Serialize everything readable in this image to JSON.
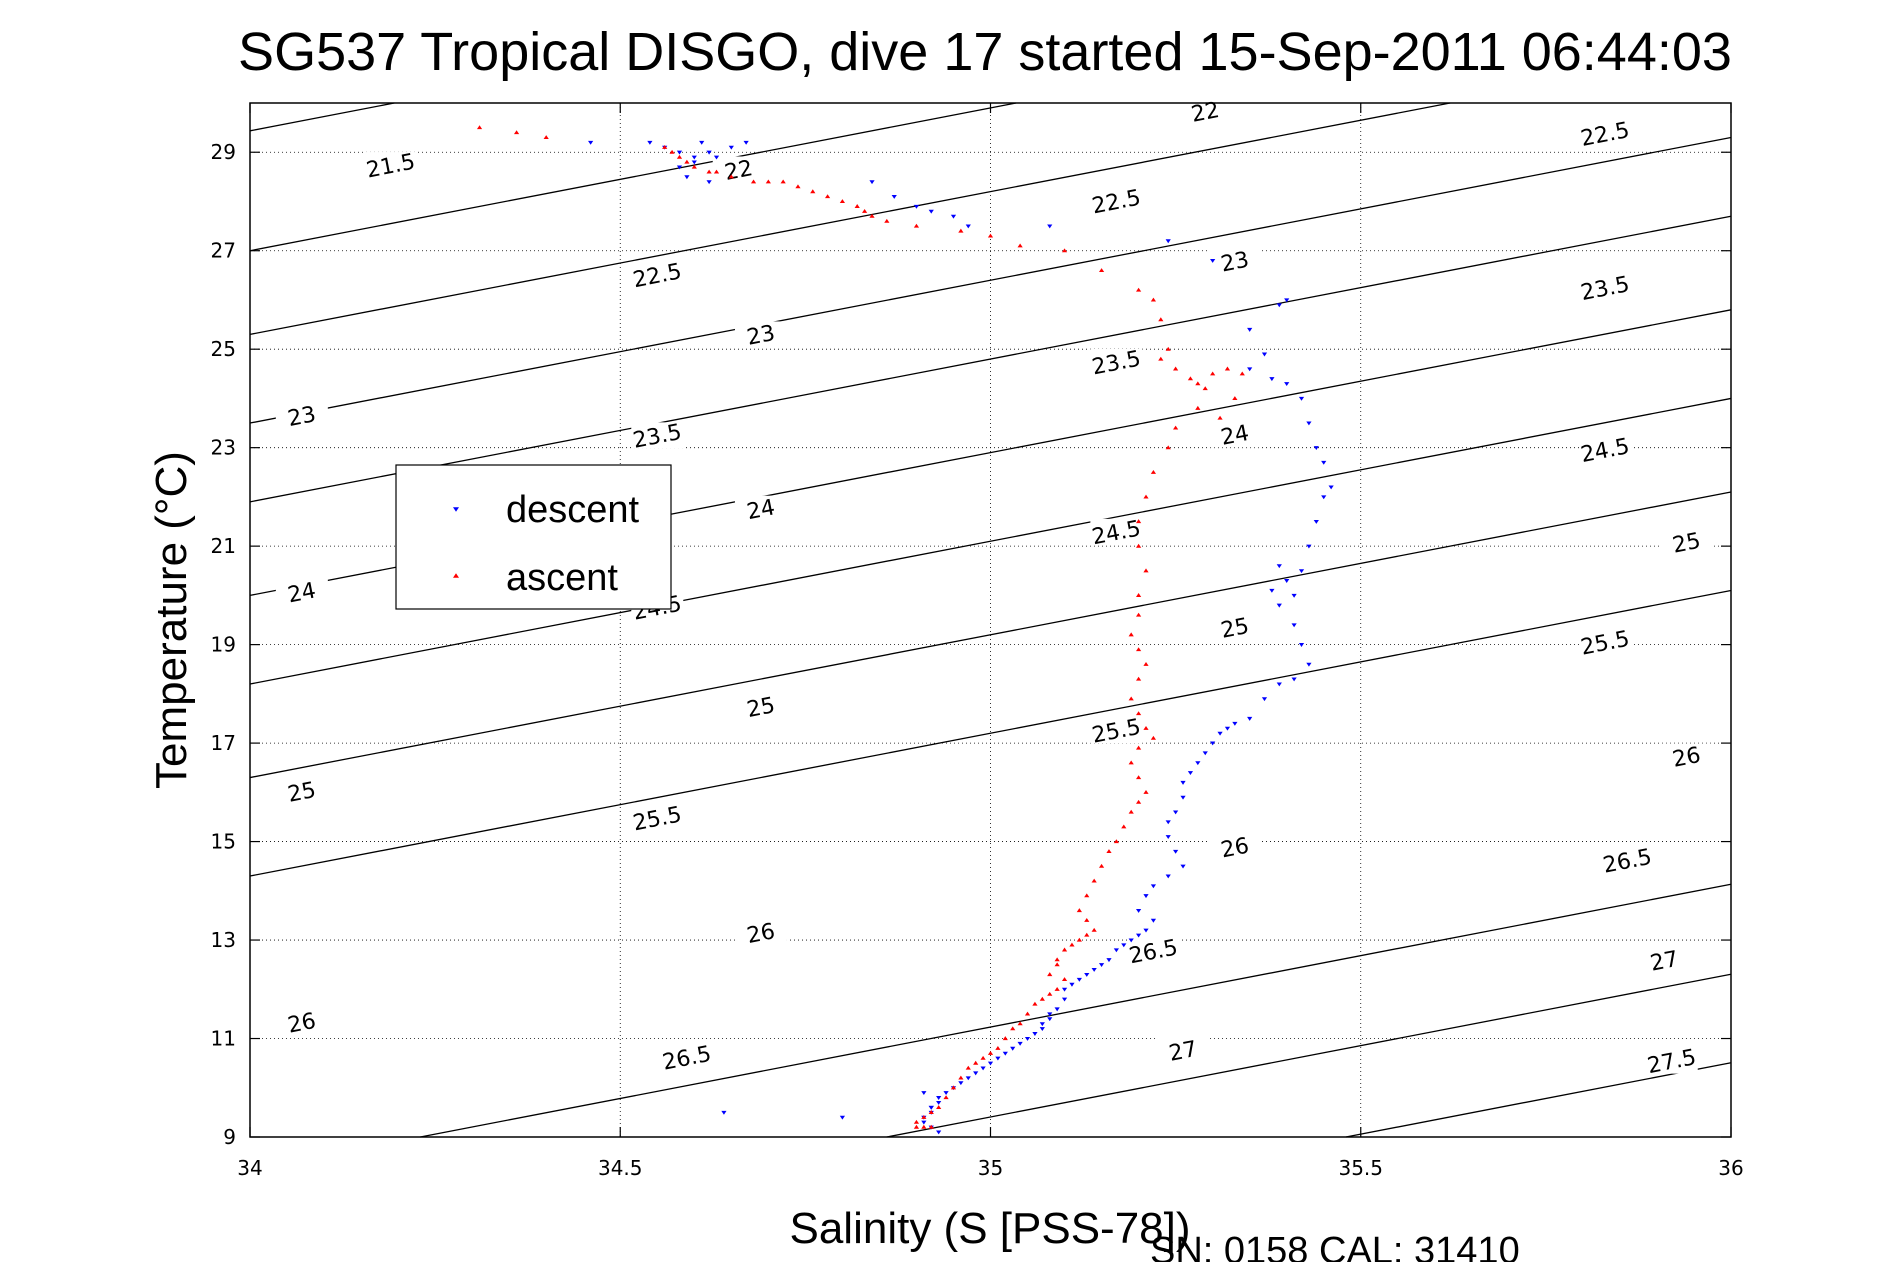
{
  "chart_data": {
    "type": "scatter",
    "title": "SG537 Tropical DISGO, dive 17 started 15-Sep-2011 06:44:03",
    "xlabel": "Salinity (S [PSS-78])",
    "ylabel": "Temperature (°C)",
    "xlim": [
      34,
      36
    ],
    "ylim": [
      9,
      30
    ],
    "xticks": [
      "34",
      "34.5",
      "35",
      "35.5",
      "36"
    ],
    "yticks": [
      "9",
      "11",
      "13",
      "15",
      "17",
      "19",
      "21",
      "23",
      "25",
      "27",
      "29"
    ],
    "grid": true,
    "legend_position": "left",
    "footer": "SN: 0158  CAL: 31410",
    "density_contours": {
      "levels": [
        "21.5",
        "22",
        "22.5",
        "23",
        "23.5",
        "24",
        "24.5",
        "25",
        "25.5",
        "26",
        "26.5",
        "27",
        "27.5"
      ],
      "lines": [
        {
          "level": 21.5,
          "S0": 33.85,
          "T0": 29.0
        },
        {
          "level": 22.0,
          "S0": 33.2,
          "T0": 28.7
        },
        {
          "level": 22.5,
          "S0": 34.0,
          "T0": 27.0
        },
        {
          "level": 23.0,
          "S0": 34.0,
          "T0": 25.3
        },
        {
          "level": 23.5,
          "S0": 34.0,
          "T0": 23.5
        },
        {
          "level": 24.0,
          "S0": 34.0,
          "T0": 21.9
        },
        {
          "level": 24.5,
          "S0": 34.0,
          "T0": 20.0
        },
        {
          "level": 25.0,
          "S0": 34.0,
          "T0": 18.2
        },
        {
          "level": 25.5,
          "S0": 34.0,
          "T0": 16.3
        },
        {
          "level": 26.0,
          "S0": 34.0,
          "T0": 14.3
        },
        {
          "level": 26.5,
          "S0": 34.23,
          "T0": 9.0
        },
        {
          "level": 27.0,
          "S0": 34.86,
          "T0": 9.0
        },
        {
          "level": 27.5,
          "S0": 35.48,
          "T0": 9.0
        }
      ],
      "labels": [
        {
          "text": "21.5",
          "S": 34.19,
          "T": 28.72
        },
        {
          "text": "22",
          "S": 34.66,
          "T": 28.63
        },
        {
          "text": "22",
          "S": 35.29,
          "T": 29.81
        },
        {
          "text": "22.5",
          "S": 34.55,
          "T": 26.49
        },
        {
          "text": "22.5",
          "S": 35.17,
          "T": 27.99
        },
        {
          "text": "22.5",
          "S": 35.83,
          "T": 29.36
        },
        {
          "text": "23",
          "S": 34.07,
          "T": 23.63
        },
        {
          "text": "23",
          "S": 34.69,
          "T": 25.28
        },
        {
          "text": "23",
          "S": 35.33,
          "T": 26.77
        },
        {
          "text": "23.5",
          "S": 34.55,
          "T": 23.23
        },
        {
          "text": "23.5",
          "S": 35.17,
          "T": 24.72
        },
        {
          "text": "23.5",
          "S": 35.83,
          "T": 26.23
        },
        {
          "text": "24",
          "S": 34.07,
          "T": 20.05
        },
        {
          "text": "24",
          "S": 34.69,
          "T": 21.74
        },
        {
          "text": "24",
          "S": 35.33,
          "T": 23.25
        },
        {
          "text": "24.5",
          "S": 34.55,
          "T": 19.74
        },
        {
          "text": "24.5",
          "S": 35.17,
          "T": 21.27
        },
        {
          "text": "24.5",
          "S": 35.83,
          "T": 22.94
        },
        {
          "text": "25",
          "S": 34.07,
          "T": 16.0
        },
        {
          "text": "25",
          "S": 34.69,
          "T": 17.72
        },
        {
          "text": "25",
          "S": 35.33,
          "T": 19.33
        },
        {
          "text": "25",
          "S": 35.94,
          "T": 21.06
        },
        {
          "text": "25.5",
          "S": 34.55,
          "T": 15.46
        },
        {
          "text": "25.5",
          "S": 35.17,
          "T": 17.24
        },
        {
          "text": "25.5",
          "S": 35.83,
          "T": 19.03
        },
        {
          "text": "26",
          "S": 34.07,
          "T": 11.31
        },
        {
          "text": "26",
          "S": 34.69,
          "T": 13.13
        },
        {
          "text": "26",
          "S": 35.33,
          "T": 14.87
        },
        {
          "text": "26",
          "S": 35.94,
          "T": 16.71
        },
        {
          "text": "26.5",
          "S": 34.59,
          "T": 10.6
        },
        {
          "text": "26.5",
          "S": 35.22,
          "T": 12.76
        },
        {
          "text": "26.5",
          "S": 35.86,
          "T": 14.6
        },
        {
          "text": "27",
          "S": 35.26,
          "T": 10.74
        },
        {
          "text": "27",
          "S": 35.91,
          "T": 12.57
        },
        {
          "text": "27.5",
          "S": 35.92,
          "T": 10.53
        }
      ]
    },
    "series": [
      {
        "name": "descent",
        "color": "#0000ff",
        "marker": "triangle-down",
        "x": [
          34.46,
          34.54,
          34.56,
          34.58,
          34.6,
          34.61,
          34.62,
          34.6,
          34.58,
          34.59,
          34.62,
          34.63,
          34.65,
          34.67,
          34.84,
          34.87,
          34.9,
          34.92,
          34.95,
          34.97,
          35.08,
          35.24,
          35.3,
          35.35,
          35.39,
          35.4,
          35.37,
          35.35,
          35.38,
          35.4,
          35.42,
          35.43,
          35.44,
          35.45,
          35.46,
          35.45,
          35.44,
          35.43,
          35.42,
          35.41,
          35.4,
          35.39,
          35.38,
          35.39,
          35.41,
          35.42,
          35.43,
          35.41,
          35.39,
          35.37,
          35.35,
          35.33,
          35.32,
          35.31,
          35.3,
          35.29,
          35.28,
          35.27,
          35.26,
          35.26,
          35.25,
          35.24,
          35.24,
          35.25,
          35.26,
          35.24,
          35.22,
          35.21,
          35.2,
          35.22,
          35.21,
          35.2,
          35.19,
          35.18,
          35.17,
          35.16,
          35.15,
          35.14,
          35.13,
          35.12,
          35.11,
          35.1,
          35.1,
          35.09,
          35.08,
          35.08,
          35.07,
          35.07,
          35.06,
          35.05,
          35.04,
          35.03,
          35.02,
          35.01,
          35.0,
          34.99,
          34.98,
          34.97,
          34.96,
          34.95,
          34.94,
          34.93,
          34.93,
          34.92,
          34.92,
          34.91,
          34.91,
          34.92,
          34.93,
          34.92,
          34.91,
          34.64,
          34.8
        ],
        "y": [
          29.2,
          29.2,
          29.1,
          29.0,
          28.9,
          29.2,
          29.0,
          28.8,
          28.7,
          28.5,
          28.4,
          28.9,
          29.1,
          29.2,
          28.4,
          28.1,
          27.9,
          27.8,
          27.7,
          27.5,
          27.5,
          27.2,
          26.8,
          25.4,
          25.9,
          26.0,
          24.9,
          24.6,
          24.4,
          24.3,
          24.0,
          23.5,
          23.0,
          22.7,
          22.2,
          22.0,
          21.5,
          21.0,
          20.5,
          20.0,
          20.3,
          20.6,
          20.1,
          19.8,
          19.4,
          19.0,
          18.6,
          18.3,
          18.2,
          17.9,
          17.5,
          17.4,
          17.3,
          17.2,
          17.0,
          16.8,
          16.6,
          16.4,
          16.2,
          15.9,
          15.6,
          15.4,
          15.1,
          14.8,
          14.5,
          14.3,
          14.1,
          13.9,
          13.6,
          13.4,
          13.2,
          13.1,
          13.0,
          12.9,
          12.8,
          12.6,
          12.5,
          12.4,
          12.3,
          12.2,
          12.1,
          12.0,
          11.8,
          11.6,
          11.5,
          11.4,
          11.3,
          11.2,
          11.1,
          11.0,
          10.9,
          10.8,
          10.7,
          10.6,
          10.5,
          10.4,
          10.3,
          10.2,
          10.1,
          10.0,
          9.9,
          9.8,
          9.7,
          9.6,
          9.5,
          9.4,
          9.3,
          9.2,
          9.1,
          9.6,
          9.9,
          9.5,
          9.4
        ]
      },
      {
        "name": "ascent",
        "color": "#ff0000",
        "marker": "triangle-up",
        "x": [
          34.31,
          34.36,
          34.4,
          34.56,
          34.57,
          34.58,
          34.59,
          34.6,
          34.62,
          34.63,
          34.65,
          34.68,
          34.7,
          34.72,
          34.74,
          34.76,
          34.78,
          34.8,
          34.82,
          34.83,
          34.84,
          34.86,
          34.9,
          34.96,
          35.0,
          35.04,
          35.1,
          35.15,
          35.2,
          35.22,
          35.23,
          35.24,
          35.23,
          35.25,
          35.27,
          35.28,
          35.29,
          35.3,
          35.32,
          35.34,
          35.33,
          35.31,
          35.28,
          35.25,
          35.24,
          35.22,
          35.21,
          35.2,
          35.2,
          35.21,
          35.2,
          35.2,
          35.19,
          35.2,
          35.21,
          35.2,
          35.19,
          35.2,
          35.21,
          35.22,
          35.2,
          35.19,
          35.2,
          35.21,
          35.2,
          35.19,
          35.18,
          35.17,
          35.16,
          35.15,
          35.14,
          35.13,
          35.12,
          35.13,
          35.14,
          35.13,
          35.12,
          35.11,
          35.1,
          35.09,
          35.09,
          35.08,
          35.1,
          35.09,
          35.08,
          35.07,
          35.06,
          35.05,
          35.04,
          35.03,
          35.02,
          35.01,
          35.0,
          34.99,
          34.98,
          34.97,
          34.96,
          34.95,
          34.94,
          34.93,
          34.92,
          34.91,
          34.9,
          34.9,
          34.91,
          34.92
        ],
        "y": [
          29.5,
          29.4,
          29.3,
          29.1,
          29.0,
          28.9,
          28.8,
          28.7,
          28.6,
          28.6,
          28.5,
          28.4,
          28.4,
          28.4,
          28.3,
          28.2,
          28.1,
          28.0,
          27.9,
          27.8,
          27.7,
          27.6,
          27.5,
          27.4,
          27.3,
          27.1,
          27.0,
          26.6,
          26.2,
          26.0,
          25.6,
          25.0,
          24.8,
          24.6,
          24.4,
          24.3,
          24.2,
          24.5,
          24.6,
          24.5,
          24.0,
          23.6,
          23.8,
          23.4,
          23.0,
          22.5,
          22.0,
          21.5,
          21.0,
          20.5,
          20.0,
          19.6,
          19.2,
          18.9,
          18.6,
          18.3,
          17.9,
          17.6,
          17.3,
          17.1,
          16.9,
          16.6,
          16.3,
          16.0,
          15.8,
          15.6,
          15.3,
          15.0,
          14.8,
          14.5,
          14.2,
          13.9,
          13.6,
          13.4,
          13.2,
          13.1,
          13.0,
          12.9,
          12.8,
          12.6,
          12.5,
          12.3,
          12.2,
          12.0,
          11.9,
          11.8,
          11.7,
          11.5,
          11.3,
          11.2,
          11.0,
          10.8,
          10.7,
          10.6,
          10.5,
          10.4,
          10.2,
          10.0,
          9.8,
          9.6,
          9.5,
          9.4,
          9.3,
          9.2,
          9.2,
          9.2
        ]
      }
    ]
  }
}
